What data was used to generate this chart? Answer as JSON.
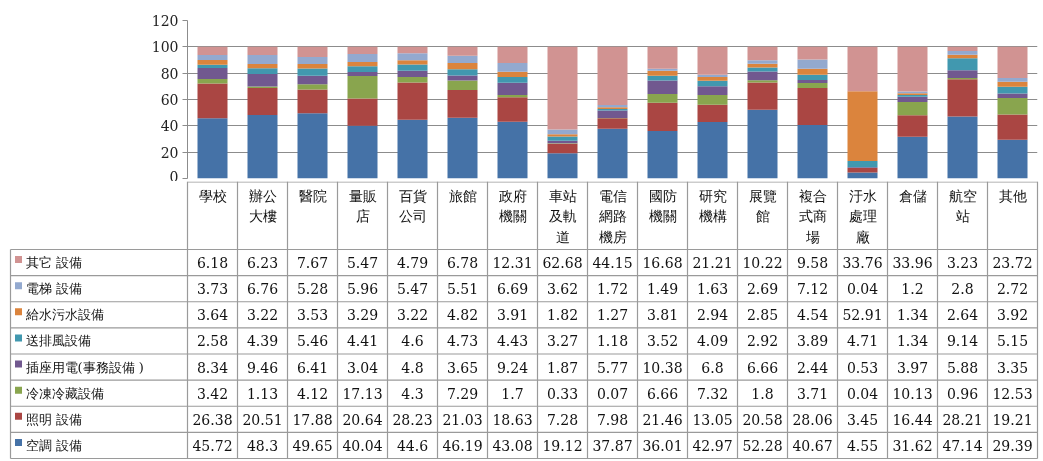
{
  "chart_data": {
    "type": "bar",
    "stacked": true,
    "categories": [
      "學校",
      "辦公大樓",
      "醫院",
      "量販店",
      "百貨公司",
      "旅館",
      "政府機關",
      "車站及軌道",
      "電信網路機房",
      "國防機關",
      "研究機構",
      "展覽館",
      "複合式商場",
      "汙水處理廠",
      "倉儲",
      "航空站",
      "其他"
    ],
    "series": [
      {
        "name": "空調 設備",
        "color": "#4572a7",
        "values": [
          45.72,
          48.3,
          49.65,
          40.04,
          44.6,
          46.19,
          43.08,
          19.12,
          37.87,
          36.01,
          42.97,
          52.28,
          40.67,
          4.55,
          31.62,
          47.14,
          29.39
        ]
      },
      {
        "name": "照明 設備",
        "color": "#aa4643",
        "values": [
          26.38,
          20.51,
          17.88,
          20.64,
          28.23,
          21.03,
          18.63,
          7.28,
          7.98,
          21.46,
          13.05,
          20.58,
          28.06,
          3.45,
          16.44,
          28.21,
          19.21
        ]
      },
      {
        "name": "冷凍冷藏設備",
        "color": "#89a54e",
        "values": [
          3.42,
          1.13,
          4.12,
          17.13,
          4.3,
          7.29,
          1.7,
          0.33,
          0.07,
          6.66,
          7.32,
          1.8,
          3.71,
          0.04,
          10.13,
          0.96,
          12.53
        ]
      },
      {
        "name": "插座用電(事務設備 )",
        "color": "#71588f",
        "values": [
          8.34,
          9.46,
          6.41,
          3.04,
          4.8,
          3.65,
          9.24,
          1.87,
          5.77,
          10.38,
          6.8,
          6.66,
          2.44,
          0.53,
          3.97,
          5.88,
          3.35
        ]
      },
      {
        "name": "送排風設備",
        "color": "#4198af",
        "values": [
          2.58,
          4.39,
          5.46,
          4.41,
          4.6,
          4.73,
          4.43,
          3.27,
          1.18,
          3.52,
          4.09,
          2.92,
          3.89,
          4.71,
          1.34,
          9.14,
          5.15
        ]
      },
      {
        "name": "給水污水設備",
        "color": "#db843d",
        "values": [
          3.64,
          3.22,
          3.53,
          3.29,
          3.22,
          4.82,
          3.91,
          1.82,
          1.27,
          3.81,
          2.94,
          2.85,
          4.54,
          52.91,
          1.34,
          2.64,
          3.92
        ]
      },
      {
        "name": "電梯 設備",
        "color": "#93a9cf",
        "values": [
          3.73,
          6.76,
          5.28,
          5.96,
          5.47,
          5.51,
          6.69,
          3.62,
          1.72,
          1.49,
          1.63,
          2.69,
          7.12,
          0.04,
          1.2,
          2.8,
          2.72
        ]
      },
      {
        "name": "其它 設備",
        "color": "#d19392",
        "values": [
          6.18,
          6.23,
          7.67,
          5.47,
          4.79,
          6.78,
          12.31,
          62.68,
          44.15,
          16.68,
          21.21,
          10.22,
          9.58,
          33.76,
          33.96,
          3.23,
          23.72
        ]
      }
    ],
    "ylim": [
      0,
      120
    ],
    "yticks": [
      0,
      20,
      40,
      60,
      80,
      100,
      120
    ],
    "grid": "y",
    "legend": "bottom left",
    "data_labels": true
  }
}
